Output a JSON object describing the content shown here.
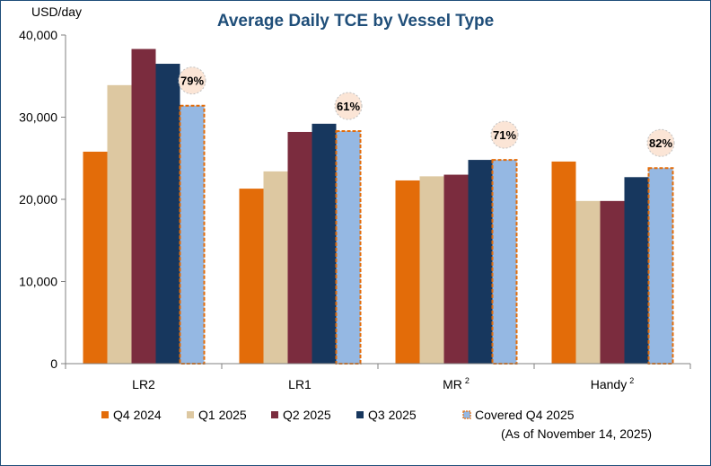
{
  "chart_data": {
    "type": "bar",
    "title": "Average Daily TCE by Vessel Type",
    "ylabel": "USD/day",
    "xlabel": "",
    "ylim": [
      0,
      40000
    ],
    "yticks": [
      0,
      10000,
      20000,
      30000,
      40000
    ],
    "ytick_labels": [
      "0",
      "10,000",
      "20,000",
      "30,000",
      "40,000"
    ],
    "categories": [
      "LR2",
      "LR1",
      "MR",
      "Handy"
    ],
    "category_superscripts": [
      "",
      "",
      "2",
      "2"
    ],
    "series": [
      {
        "name": "Q4 2024",
        "color": "#e36c09",
        "values": [
          25800,
          21300,
          22300,
          24600
        ]
      },
      {
        "name": "Q1 2025",
        "color": "#ddc8a1",
        "values": [
          33900,
          23400,
          22800,
          19800
        ]
      },
      {
        "name": "Q2 2025",
        "color": "#7b2c3e",
        "values": [
          38300,
          28200,
          23000,
          19800
        ]
      },
      {
        "name": "Q3 2025",
        "color": "#17375e",
        "values": [
          36500,
          29200,
          24800,
          22700
        ]
      },
      {
        "name": "Covered Q4 2025",
        "color": "#95b8e3",
        "outline": "#e36c09",
        "dashed": true,
        "values": [
          31400,
          28300,
          24800,
          23800
        ]
      }
    ],
    "annotations": [
      "79%",
      "61%",
      "71%",
      "82%"
    ],
    "legend": {
      "position": "bottom",
      "note": "(As of November 14, 2025)"
    },
    "grid": false
  }
}
